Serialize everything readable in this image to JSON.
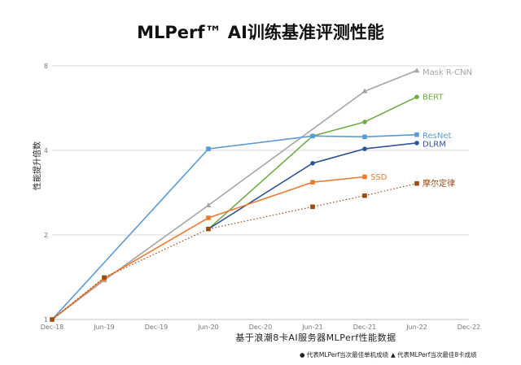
{
  "chart_data": {
    "type": "line",
    "title": "MLPerf™ AI训练基准评测性能",
    "xlabel": "基于浪潮8卡AI服务器MLPerf性能数据",
    "ylabel": "性能提升倍数",
    "x_ticks": [
      "Dec-18",
      "Jun-19",
      "Dec-19",
      "Jun-20",
      "Dec-20",
      "Jun-21",
      "Dec-21",
      "Jun-22",
      "Dec-22"
    ],
    "y_scale": "log2",
    "y_ticks": [
      1,
      2,
      4,
      8
    ],
    "ylim": [
      1,
      8
    ],
    "grid": "horizontal",
    "legend": "right, at line ends",
    "series": [
      {
        "name": "Mask R-CNN",
        "color": "#a6a6a6",
        "marker": "triangle",
        "x": [
          "Dec-18",
          "Jun-19",
          "Jun-20",
          "Dec-21",
          "Jun-22"
        ],
        "values": [
          1.0,
          1.38,
          2.55,
          6.5,
          7.7
        ]
      },
      {
        "name": "BERT",
        "color": "#70ad47",
        "marker": "circle",
        "x": [
          "Jun-20",
          "Jun-21",
          "Dec-21",
          "Jun-22"
        ],
        "values": [
          2.1,
          4.5,
          5.05,
          6.2
        ]
      },
      {
        "name": "ResNet",
        "color": "#5b9bd5",
        "marker": "square",
        "x": [
          "Dec-18",
          "Jun-20",
          "Jun-21",
          "Dec-21",
          "Jun-22"
        ],
        "values": [
          1.0,
          4.05,
          4.5,
          4.47,
          4.55
        ]
      },
      {
        "name": "DLRM",
        "color": "#2f5597",
        "marker": "circle",
        "x": [
          "Jun-20",
          "Jun-21",
          "Dec-21",
          "Jun-22"
        ],
        "values": [
          2.1,
          3.6,
          4.05,
          4.25
        ]
      },
      {
        "name": "SSD",
        "color": "#ed7d31",
        "marker": "square",
        "x": [
          "Dec-18",
          "Jun-19",
          "Jun-20",
          "Jun-21",
          "Dec-21"
        ],
        "values": [
          1.0,
          1.4,
          2.3,
          3.08,
          3.22
        ]
      },
      {
        "name": "摩尔定律",
        "color": "#9c4a0f",
        "marker": "square",
        "dotted": true,
        "x": [
          "Dec-18",
          "Jun-19",
          "Jun-20",
          "Jun-21",
          "Dec-21",
          "Jun-22"
        ],
        "values": [
          1.0,
          1.41,
          2.1,
          2.52,
          2.76,
          3.05
        ]
      }
    ]
  },
  "footer": {
    "note_circle": "● 代表MLPerf当次最佳单机成绩",
    "note_triangle": "▲ 代表MLPerf当次最佳8卡成绩"
  }
}
